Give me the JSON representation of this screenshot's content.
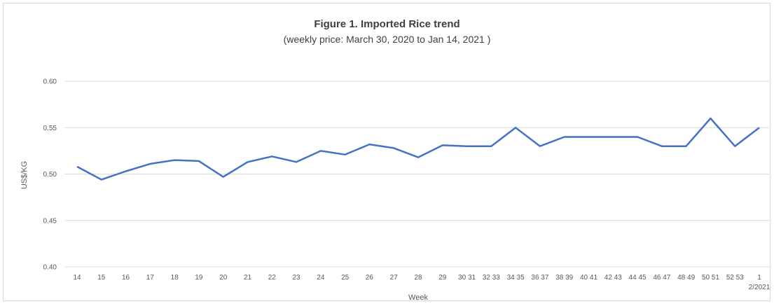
{
  "chart_data": {
    "type": "line",
    "title": "Figure 1. Imported Rice trend",
    "subtitle": "(weekly price: March 30, 2020 to Jan 14, 2021 )",
    "xlabel": "Week",
    "ylabel": "US$/KG",
    "ylim": [
      0.4,
      0.6
    ],
    "yticks": [
      "0.60",
      "0.55",
      "0.50",
      "0.45",
      "0.40"
    ],
    "grid": true,
    "legend": "none",
    "line_color": "#4472c4",
    "categories": [
      "14",
      "15",
      "16",
      "17",
      "18",
      "19",
      "20",
      "21",
      "22",
      "23",
      "24",
      "25",
      "26",
      "27",
      "28",
      "29",
      "30 31",
      "32 33",
      "34 35",
      "36 37",
      "38 39",
      "40 41",
      "42 43",
      "44 45",
      "46 47",
      "48 49",
      "50 51",
      "52 53",
      "1"
    ],
    "extra_tick_label": "2/2021",
    "series": [
      {
        "values": [
          0.508,
          0.494,
          0.503,
          0.511,
          0.515,
          0.514,
          0.497,
          0.513,
          0.519,
          0.513,
          0.525,
          0.521,
          0.532,
          0.528,
          0.518,
          0.531,
          0.53,
          0.53,
          0.55,
          0.53,
          0.54,
          0.54,
          0.54,
          0.54,
          0.53,
          0.53,
          0.56,
          0.53,
          0.55
        ]
      }
    ]
  }
}
